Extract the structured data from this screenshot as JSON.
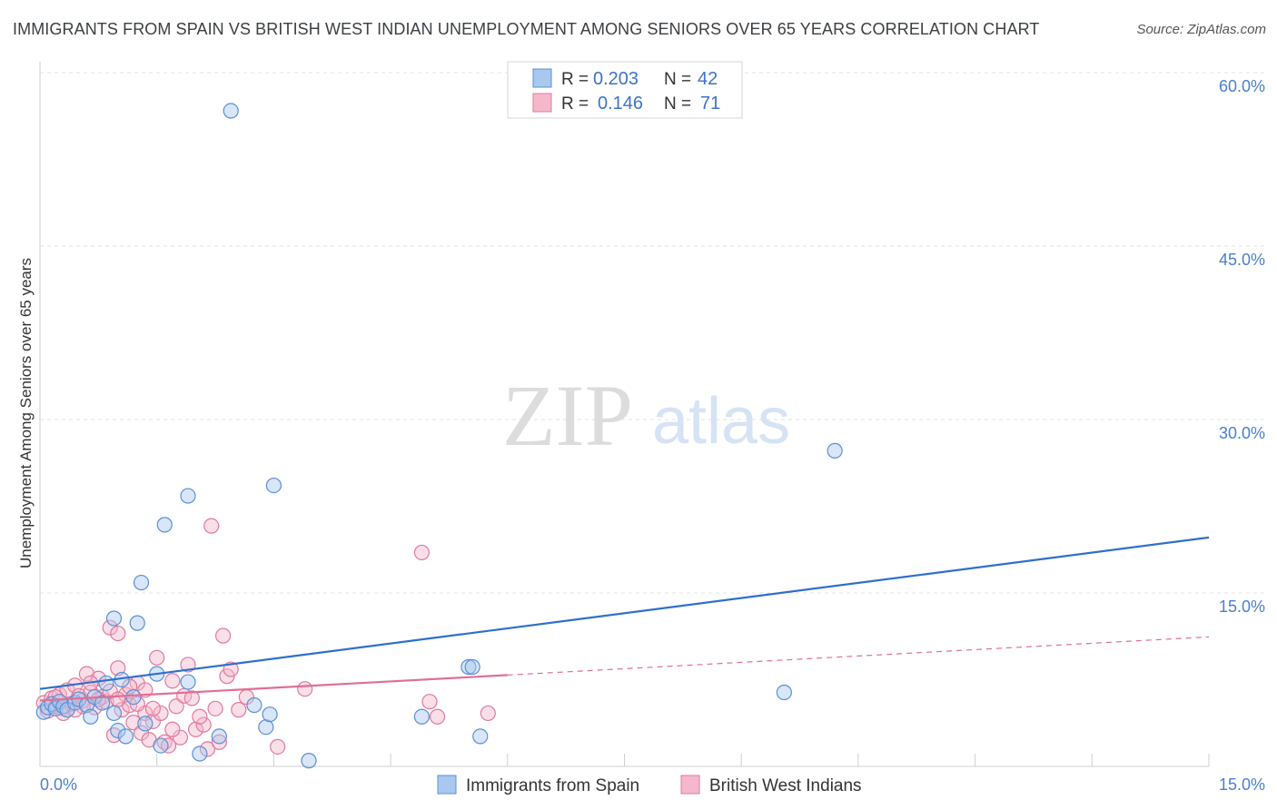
{
  "title": "IMMIGRANTS FROM SPAIN VS BRITISH WEST INDIAN UNEMPLOYMENT AMONG SENIORS OVER 65 YEARS CORRELATION CHART",
  "source": "Source: ZipAtlas.com",
  "watermark": {
    "zip": "ZIP",
    "atlas": "atlas"
  },
  "colors": {
    "blue_fill": "#a8c8f0",
    "blue_stroke": "#5b8fd6",
    "blue_line": "#2f6fcc",
    "pink_fill": "#f5b8cb",
    "pink_stroke": "#e07a9c",
    "pink_line": "#e06f95",
    "grid": "#e3e3e3",
    "tick_text": "#4a7fd1"
  },
  "legend": {
    "rows": [
      {
        "r_label": "R =",
        "r_value": "0.203",
        "n_label": "N =",
        "n_value": "42",
        "series": "blue"
      },
      {
        "r_label": "R =",
        "r_value": "0.146",
        "n_label": "N =",
        "n_value": "71",
        "series": "pink"
      }
    ]
  },
  "chart_data": {
    "type": "scatter",
    "title": "IMMIGRANTS FROM SPAIN VS BRITISH WEST INDIAN UNEMPLOYMENT AMONG SENIORS OVER 65 YEARS CORRELATION CHART",
    "xlabel": "",
    "ylabel": "Unemployment Among Seniors over 65 years",
    "xlim": [
      0,
      15
    ],
    "ylim": [
      0,
      60
    ],
    "x_tick_labels": [
      {
        "value": 0,
        "label": "0.0%"
      },
      {
        "value": 15,
        "label": "15.0%"
      }
    ],
    "y_tick_labels": [
      {
        "value": 15,
        "label": "15.0%"
      },
      {
        "value": 30,
        "label": "30.0%"
      },
      {
        "value": 45,
        "label": "45.0%"
      },
      {
        "value": 60,
        "label": "60.0%"
      }
    ],
    "x_minor_ticks": [
      1.5,
      3,
      4.5,
      6,
      7.5,
      9,
      10.5,
      12,
      13.5,
      15
    ],
    "series": [
      {
        "name": "Immigrants from Spain",
        "color": "blue",
        "trend": {
          "x": [
            0,
            15
          ],
          "y": [
            6.7,
            19.8
          ],
          "dashed_from": null
        },
        "points": [
          [
            0.05,
            4.7
          ],
          [
            0.1,
            5.1
          ],
          [
            0.15,
            5.4
          ],
          [
            0.2,
            5.0
          ],
          [
            0.25,
            5.6
          ],
          [
            0.3,
            5.2
          ],
          [
            0.35,
            4.9
          ],
          [
            0.45,
            5.5
          ],
          [
            0.5,
            5.8
          ],
          [
            0.6,
            5.3
          ],
          [
            0.65,
            4.3
          ],
          [
            0.7,
            6.0
          ],
          [
            0.8,
            5.5
          ],
          [
            0.85,
            7.2
          ],
          [
            0.95,
            4.6
          ],
          [
            0.95,
            12.8
          ],
          [
            1.0,
            3.1
          ],
          [
            1.05,
            7.5
          ],
          [
            1.1,
            2.6
          ],
          [
            1.2,
            6.0
          ],
          [
            1.25,
            12.4
          ],
          [
            1.3,
            15.9
          ],
          [
            1.35,
            3.7
          ],
          [
            1.5,
            8.0
          ],
          [
            1.55,
            1.8
          ],
          [
            1.6,
            20.9
          ],
          [
            1.9,
            7.3
          ],
          [
            1.9,
            23.4
          ],
          [
            2.05,
            1.1
          ],
          [
            2.3,
            2.6
          ],
          [
            2.45,
            56.7
          ],
          [
            2.75,
            5.3
          ],
          [
            2.9,
            3.4
          ],
          [
            2.95,
            4.5
          ],
          [
            3.0,
            24.3
          ],
          [
            3.45,
            0.5
          ],
          [
            4.9,
            4.3
          ],
          [
            5.5,
            8.6
          ],
          [
            5.55,
            8.6
          ],
          [
            5.65,
            2.6
          ],
          [
            9.55,
            6.4
          ],
          [
            10.2,
            27.3
          ]
        ]
      },
      {
        "name": "British West Indians",
        "color": "pink",
        "trend": {
          "x": [
            0,
            15
          ],
          "y": [
            5.7,
            11.2
          ],
          "dashed_from": 6.0
        },
        "points": [
          [
            0.05,
            5.5
          ],
          [
            0.1,
            4.8
          ],
          [
            0.15,
            5.9
          ],
          [
            0.2,
            5.2
          ],
          [
            0.25,
            6.2
          ],
          [
            0.3,
            5.0
          ],
          [
            0.35,
            6.6
          ],
          [
            0.4,
            5.4
          ],
          [
            0.45,
            7.0
          ],
          [
            0.5,
            6.1
          ],
          [
            0.55,
            5.7
          ],
          [
            0.6,
            8.0
          ],
          [
            0.65,
            6.4
          ],
          [
            0.7,
            5.1
          ],
          [
            0.75,
            7.6
          ],
          [
            0.8,
            6.0
          ],
          [
            0.85,
            5.6
          ],
          [
            0.9,
            12.0
          ],
          [
            0.95,
            2.7
          ],
          [
            1.0,
            8.5
          ],
          [
            1.0,
            11.5
          ],
          [
            1.05,
            4.9
          ],
          [
            1.1,
            6.2
          ],
          [
            1.15,
            5.3
          ],
          [
            1.2,
            3.8
          ],
          [
            1.25,
            7.2
          ],
          [
            1.3,
            2.9
          ],
          [
            1.35,
            4.6
          ],
          [
            1.35,
            6.6
          ],
          [
            1.4,
            2.3
          ],
          [
            1.45,
            3.9
          ],
          [
            1.5,
            9.4
          ],
          [
            1.55,
            4.6
          ],
          [
            1.6,
            2.1
          ],
          [
            1.65,
            1.8
          ],
          [
            1.7,
            7.4
          ],
          [
            1.75,
            5.2
          ],
          [
            1.8,
            2.5
          ],
          [
            1.85,
            6.1
          ],
          [
            1.9,
            8.8
          ],
          [
            1.95,
            5.9
          ],
          [
            2.0,
            3.2
          ],
          [
            2.1,
            3.6
          ],
          [
            2.15,
            1.5
          ],
          [
            2.2,
            20.8
          ],
          [
            2.25,
            5.0
          ],
          [
            2.3,
            2.1
          ],
          [
            2.35,
            11.3
          ],
          [
            2.4,
            7.8
          ],
          [
            2.45,
            8.4
          ],
          [
            2.55,
            4.9
          ],
          [
            2.65,
            6.0
          ],
          [
            3.05,
            1.7
          ],
          [
            3.4,
            6.7
          ],
          [
            4.9,
            18.5
          ],
          [
            5.0,
            5.6
          ],
          [
            5.1,
            4.3
          ],
          [
            5.75,
            4.6
          ],
          [
            0.3,
            4.6
          ],
          [
            0.55,
            5.2
          ],
          [
            0.75,
            5.8
          ],
          [
            1.25,
            5.4
          ],
          [
            0.45,
            4.9
          ],
          [
            0.9,
            6.5
          ],
          [
            1.15,
            6.9
          ],
          [
            0.2,
            6.0
          ],
          [
            0.65,
            7.2
          ],
          [
            1.0,
            5.8
          ],
          [
            1.45,
            5.0
          ],
          [
            2.05,
            4.3
          ],
          [
            1.7,
            3.2
          ]
        ]
      }
    ],
    "legend_position": "top-center"
  },
  "bottom_legend": {
    "items": [
      {
        "label": "Immigrants from Spain",
        "series": "blue"
      },
      {
        "label": "British West Indians",
        "series": "pink"
      }
    ]
  }
}
